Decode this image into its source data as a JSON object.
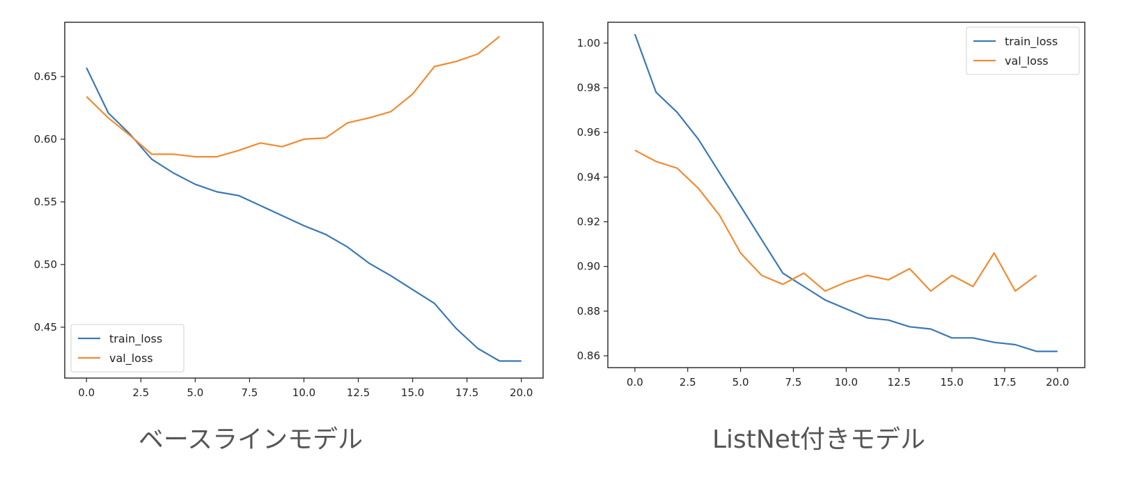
{
  "chart_data": [
    {
      "type": "line",
      "caption": "ベースラインモデル",
      "xlim": [
        -1.0,
        21.0
      ],
      "ylim": [
        0.4094,
        0.6933
      ],
      "xticks": [
        0.0,
        2.5,
        5.0,
        7.5,
        10.0,
        12.5,
        15.0,
        17.5,
        20.0
      ],
      "xtick_labels": [
        "0.0",
        "2.5",
        "5.0",
        "7.5",
        "10.0",
        "12.5",
        "15.0",
        "17.5",
        "20.0"
      ],
      "yticks": [
        0.45,
        0.5,
        0.55,
        0.6,
        0.65
      ],
      "ytick_labels": [
        "0.45",
        "0.50",
        "0.55",
        "0.60",
        "0.65"
      ],
      "grid": false,
      "legend_position": "lower-left",
      "series": [
        {
          "name": "train_loss",
          "color": "#3a78b5",
          "x": [
            0,
            1,
            2,
            3,
            4,
            5,
            6,
            7,
            8,
            9,
            10,
            11,
            12,
            13,
            14,
            15,
            16,
            17,
            18,
            19,
            20
          ],
          "y": [
            0.657,
            0.621,
            0.604,
            0.584,
            0.573,
            0.564,
            0.558,
            0.555,
            0.547,
            0.539,
            0.531,
            0.524,
            0.514,
            0.501,
            0.491,
            0.48,
            0.469,
            0.449,
            0.433,
            0.423,
            0.423
          ]
        },
        {
          "name": "val_loss",
          "color": "#f28a30",
          "x": [
            0,
            1,
            2,
            3,
            4,
            5,
            6,
            7,
            8,
            9,
            10,
            11,
            12,
            13,
            14,
            15,
            16,
            17,
            18,
            19
          ],
          "y": [
            0.634,
            0.617,
            0.603,
            0.588,
            0.588,
            0.586,
            0.586,
            0.591,
            0.597,
            0.594,
            0.6,
            0.601,
            0.613,
            0.617,
            0.622,
            0.636,
            0.658,
            0.662,
            0.668,
            0.682
          ]
        }
      ]
    },
    {
      "type": "line",
      "caption": "ListNet付きモデル",
      "xlim": [
        -1.28,
        21.29
      ],
      "ylim": [
        0.8547,
        1.0093
      ],
      "xticks": [
        0.0,
        2.5,
        5.0,
        7.5,
        10.0,
        12.5,
        15.0,
        17.5,
        20.0
      ],
      "xtick_labels": [
        "0.0",
        "2.5",
        "5.0",
        "7.5",
        "10.0",
        "12.5",
        "15.0",
        "17.5",
        "20.0"
      ],
      "yticks": [
        0.86,
        0.88,
        0.9,
        0.92,
        0.94,
        0.96,
        0.98,
        1.0
      ],
      "ytick_labels": [
        "0.86",
        "0.88",
        "0.90",
        "0.92",
        "0.94",
        "0.96",
        "0.98",
        "1.00"
      ],
      "grid": false,
      "legend_position": "upper-right",
      "series": [
        {
          "name": "train_loss",
          "color": "#3a78b5",
          "x": [
            0,
            1,
            2,
            3,
            4,
            5,
            6,
            7,
            8,
            9,
            10,
            11,
            12,
            13,
            14,
            15,
            16,
            17,
            18,
            19,
            20
          ],
          "y": [
            1.004,
            0.978,
            0.969,
            0.957,
            0.942,
            0.927,
            0.912,
            0.897,
            0.891,
            0.885,
            0.881,
            0.877,
            0.876,
            0.873,
            0.872,
            0.868,
            0.868,
            0.866,
            0.865,
            0.862,
            0.862
          ]
        },
        {
          "name": "val_loss",
          "color": "#f28a30",
          "x": [
            0,
            1,
            2,
            3,
            4,
            5,
            6,
            7,
            8,
            9,
            10,
            11,
            12,
            13,
            14,
            15,
            16,
            17,
            18,
            19
          ],
          "y": [
            0.952,
            0.947,
            0.944,
            0.935,
            0.923,
            0.906,
            0.896,
            0.892,
            0.897,
            0.889,
            0.893,
            0.896,
            0.894,
            0.899,
            0.889,
            0.896,
            0.891,
            0.906,
            0.889,
            0.896
          ]
        }
      ]
    }
  ]
}
